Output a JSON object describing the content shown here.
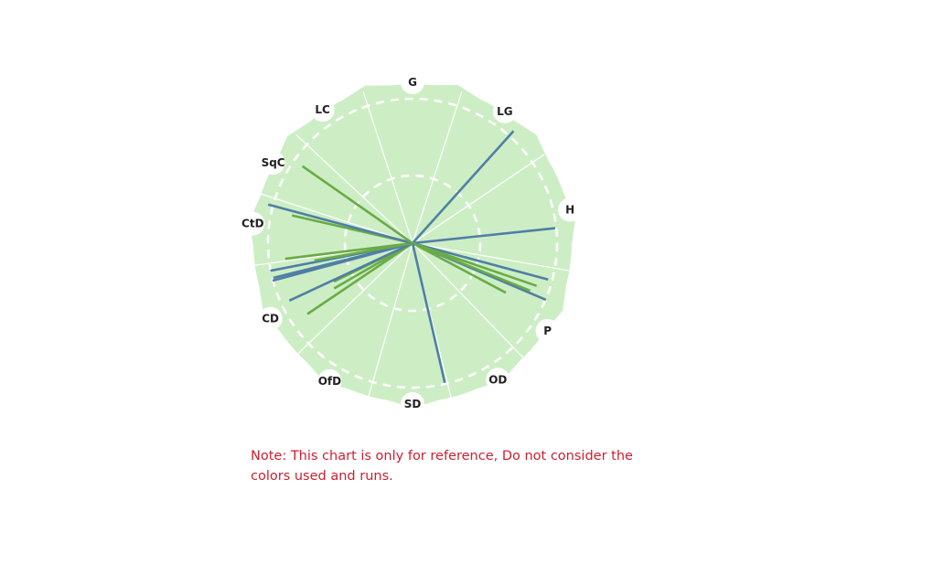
{
  "wagon_wheel": {
    "colors": {
      "field": "#cdeec5",
      "boundary_dash": "#ffffff",
      "sector_line": "#ffffff",
      "shot_blue": "#4f7fa6",
      "shot_green": "#6aab46",
      "label_badge": "#ffffff",
      "note_text": "#cc1f2f"
    },
    "regions": [
      {
        "label": "G",
        "angle_deg": 0
      },
      {
        "label": "LG",
        "angle_deg": 35
      },
      {
        "label": "H",
        "angle_deg": 78
      },
      {
        "label": "P",
        "angle_deg": 123
      },
      {
        "label": "OD",
        "angle_deg": 148
      },
      {
        "label": "SD",
        "angle_deg": 180
      },
      {
        "label": "OfD",
        "angle_deg": 211
      },
      {
        "label": "CD",
        "angle_deg": 242
      },
      {
        "label": "CtD",
        "angle_deg": 277
      },
      {
        "label": "SqC",
        "angle_deg": 300
      },
      {
        "label": "LC",
        "angle_deg": 326
      }
    ],
    "sector_boundaries_deg": [
      18,
      56,
      100,
      136,
      166,
      196,
      226,
      262,
      288,
      313,
      342
    ],
    "shots": [
      {
        "color": "blue",
        "angle_deg": 42,
        "length": 1.0
      },
      {
        "color": "blue",
        "angle_deg": 84,
        "length": 0.95
      },
      {
        "color": "blue",
        "angle_deg": 105,
        "length": 0.93
      },
      {
        "color": "blue",
        "angle_deg": 113,
        "length": 0.96
      },
      {
        "color": "green",
        "angle_deg": 109,
        "length": 0.87
      },
      {
        "color": "green",
        "angle_deg": 112,
        "length": 0.84
      },
      {
        "color": "green",
        "angle_deg": 118,
        "length": 0.7
      },
      {
        "color": "blue",
        "angle_deg": 167,
        "length": 0.95
      },
      {
        "color": "green",
        "angle_deg": 236,
        "length": 0.84
      },
      {
        "color": "green",
        "angle_deg": 240,
        "length": 0.6
      },
      {
        "color": "green",
        "angle_deg": 244,
        "length": 0.58
      },
      {
        "color": "blue",
        "angle_deg": 245,
        "length": 0.9
      },
      {
        "color": "blue",
        "angle_deg": 255,
        "length": 0.96
      },
      {
        "color": "blue",
        "angle_deg": 256,
        "length": 0.95
      },
      {
        "color": "blue",
        "angle_deg": 259,
        "length": 0.96
      },
      {
        "color": "green",
        "angle_deg": 260,
        "length": 0.66
      },
      {
        "color": "green",
        "angle_deg": 263,
        "length": 0.85
      },
      {
        "color": "green",
        "angle_deg": 283,
        "length": 0.82
      },
      {
        "color": "blue",
        "angle_deg": 285,
        "length": 0.99
      },
      {
        "color": "green",
        "angle_deg": 305,
        "length": 0.89
      }
    ]
  },
  "note": "Note: This chart is only for reference, Do not consider the colors used and runs."
}
